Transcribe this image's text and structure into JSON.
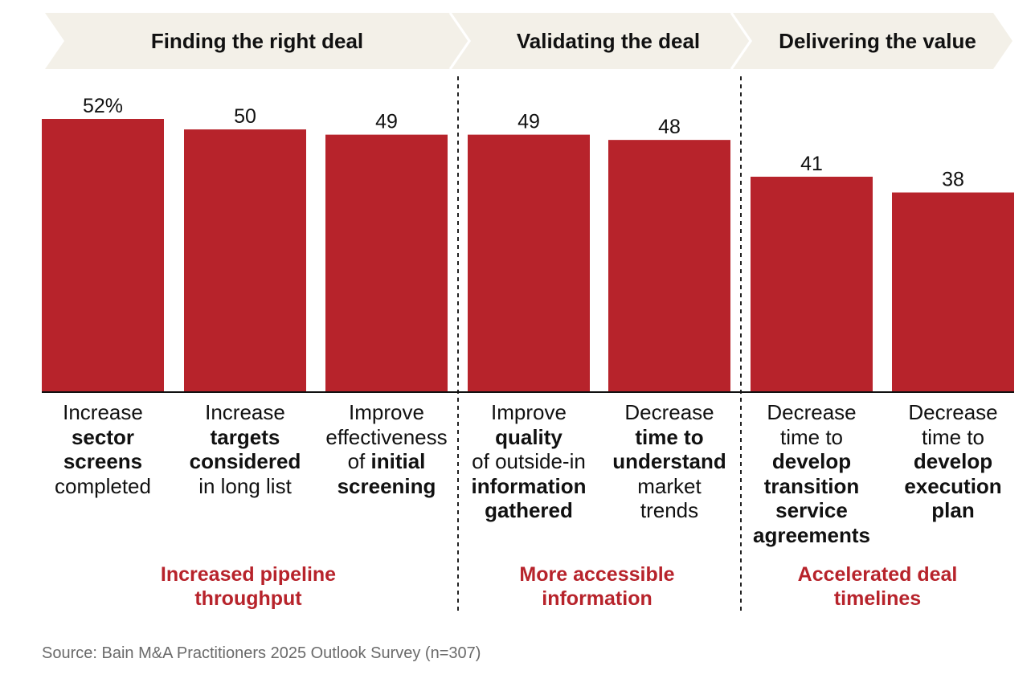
{
  "phases": [
    {
      "label": "Finding the right deal"
    },
    {
      "label": "Validating the deal"
    },
    {
      "label": "Delivering the value"
    }
  ],
  "chart_data": {
    "type": "bar",
    "categories": [
      "Increase sector screens completed",
      "Increase targets considered in long list",
      "Improve effectiveness of initial screening",
      "Improve quality of outside-in information gathered",
      "Decrease time to understand market trends",
      "Decrease time to develop transition service agreements",
      "Decrease time to develop execution plan"
    ],
    "values": [
      52,
      50,
      49,
      49,
      48,
      41,
      38
    ],
    "value_labels": [
      "52%",
      "50",
      "49",
      "49",
      "48",
      "41",
      "38"
    ],
    "ylim": [
      0,
      52
    ],
    "bar_color": "#b7232b",
    "grid": false
  },
  "categories_text": [
    [
      {
        "t": "Increase",
        "b": false
      },
      {
        "t": "sector",
        "b": true
      },
      {
        "t": "screens",
        "b": true
      },
      {
        "t": "completed",
        "b": false
      }
    ],
    [
      {
        "t": "Increase",
        "b": false
      },
      {
        "t": "targets",
        "b": true
      },
      {
        "t": "considered",
        "b": true
      },
      {
        "t": "in long list",
        "b": false
      }
    ],
    [
      {
        "t": "Improve",
        "b": false
      },
      {
        "t": "effectiveness",
        "b": false
      },
      {
        "t": "of ",
        "b": false,
        "inline_next": true
      },
      {
        "t": "initial",
        "b": true
      },
      {
        "t": "screening",
        "b": true
      }
    ],
    [
      {
        "t": "Improve",
        "b": false
      },
      {
        "t": "quality",
        "b": true
      },
      {
        "t": "of outside-in",
        "b": false
      },
      {
        "t": "information",
        "b": true
      },
      {
        "t": "gathered",
        "b": true
      }
    ],
    [
      {
        "t": "Decrease",
        "b": false
      },
      {
        "t": "time to",
        "b": true
      },
      {
        "t": "understand",
        "b": true
      },
      {
        "t": "market",
        "b": false
      },
      {
        "t": "trends",
        "b": false
      }
    ],
    [
      {
        "t": "Decrease",
        "b": false
      },
      {
        "t": "time to",
        "b": false
      },
      {
        "t": "develop",
        "b": true
      },
      {
        "t": "transition",
        "b": true
      },
      {
        "t": "service",
        "b": true
      },
      {
        "t": "agreements",
        "b": true
      }
    ],
    [
      {
        "t": "Decrease",
        "b": false
      },
      {
        "t": "time to",
        "b": false
      },
      {
        "t": "develop",
        "b": true
      },
      {
        "t": "execution",
        "b": true
      },
      {
        "t": "plan",
        "b": true
      }
    ]
  ],
  "outcomes": [
    {
      "line1": "Increased pipeline",
      "line2": "throughput"
    },
    {
      "line1": "More accessible",
      "line2": "information"
    },
    {
      "line1": "Accelerated deal",
      "line2": "timelines"
    }
  ],
  "source": "Source: Bain M&A Practitioners 2025 Outlook Survey (n=307)",
  "colors": {
    "bar": "#b7232b",
    "chevron": "#f3f0e8",
    "outcome_text": "#b7232b",
    "source_text": "#6a6a6a"
  }
}
